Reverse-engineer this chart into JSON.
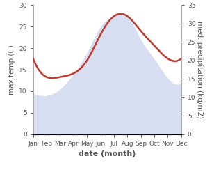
{
  "months": [
    "Jan",
    "Feb",
    "Mar",
    "Apr",
    "May",
    "Jun",
    "Jul",
    "Aug",
    "Sep",
    "Oct",
    "Nov",
    "Dec"
  ],
  "temp_max": [
    9.5,
    9.0,
    10.5,
    14.0,
    19.0,
    25.0,
    27.5,
    27.5,
    22.0,
    17.5,
    13.0,
    12.0
  ],
  "precipitation": [
    20.5,
    15.5,
    15.5,
    16.5,
    20.0,
    27.0,
    32.0,
    32.0,
    28.0,
    24.0,
    20.5,
    20.5
  ],
  "temp_fill_color": "#b8c4e8",
  "precip_color": "#c0392b",
  "left_ylim": [
    0,
    30
  ],
  "right_ylim": [
    0,
    35
  ],
  "left_yticks": [
    0,
    5,
    10,
    15,
    20,
    25,
    30
  ],
  "right_yticks": [
    0,
    5,
    10,
    15,
    20,
    25,
    30,
    35
  ],
  "ylabel_left": "max temp (C)",
  "ylabel_right": "med. precipitation (kg/m2)",
  "xlabel": "date (month)",
  "spine_color": "#aaaaaa",
  "tick_color": "#555555",
  "label_fontsize": 7.5,
  "tick_fontsize": 6.5
}
